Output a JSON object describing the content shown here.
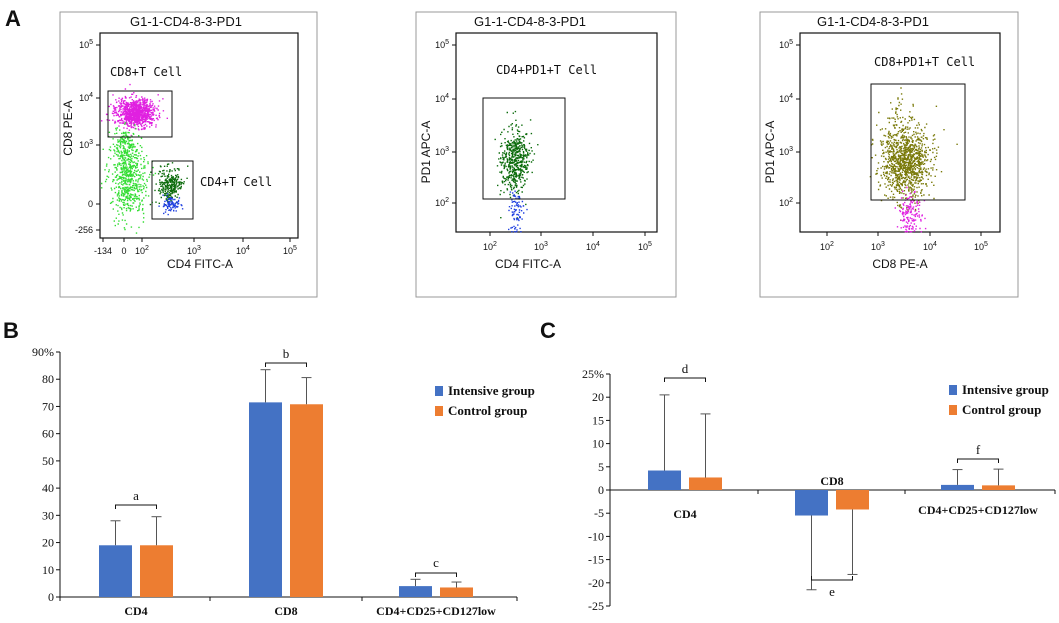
{
  "panels": {
    "A": "A",
    "B": "B",
    "C": "C"
  },
  "flow": {
    "plot1": {
      "title": "G1-1-CD4-8-3-PD1",
      "ylabel": "CD8 PE-A",
      "xlabel": "CD4 FITC-A",
      "gate1": "CD8+T Cell",
      "gate2": "CD4+T Cell",
      "yticks": [
        "10^5",
        "10^4",
        "10^3",
        "0",
        "-256"
      ],
      "xticks": [
        "-134",
        "0",
        "10^2",
        "10^3",
        "10^4",
        "10^5"
      ]
    },
    "plot2": {
      "title": "G1-1-CD4-8-3-PD1",
      "ylabel": "PD1 APC-A",
      "xlabel": "CD4 FITC-A",
      "gate": "CD4+PD1+T Cell",
      "yticks": [
        "10^5",
        "10^4",
        "10^3",
        "10^2"
      ],
      "xticks": [
        "10^2",
        "10^3",
        "10^4",
        "10^5"
      ]
    },
    "plot3": {
      "title": "G1-1-CD4-8-3-PD1",
      "ylabel": "PD1 APC-A",
      "xlabel": "CD8 PE-A",
      "gate": "CD8+PD1+T Cell",
      "yticks": [
        "10^5",
        "10^4",
        "10^3",
        "10^2"
      ],
      "xticks": [
        "10^2",
        "10^3",
        "10^4",
        "10^5"
      ]
    }
  },
  "colors": {
    "intensive": "#4472C4",
    "control": "#ED7D31",
    "magenta": "#E020E0",
    "green_light": "#33DD33",
    "green_dark": "#0B6B0B",
    "blue_dots": "#2040E0",
    "olive": "#7A7A0A"
  },
  "chart_data": [
    {
      "type": "bar",
      "panel": "B",
      "categories": [
        "CD4",
        "CD8",
        "CD4+CD25+CD127low"
      ],
      "series": [
        {
          "name": "Intensive group",
          "values": [
            19,
            71.5,
            4
          ],
          "errors": [
            9,
            12,
            2.5
          ]
        },
        {
          "name": "Control group",
          "values": [
            19,
            70.8,
            3.5
          ],
          "errors": [
            10.5,
            9.8,
            2
          ]
        }
      ],
      "ylim": [
        0,
        90
      ],
      "yticks": [
        "0",
        "10",
        "20",
        "30",
        "40",
        "50",
        "60",
        "70",
        "80",
        "90%"
      ],
      "significance": [
        "a",
        "b",
        "c"
      ],
      "legend": "right"
    },
    {
      "type": "bar",
      "panel": "C",
      "categories": [
        "CD4",
        "CD8",
        "CD4+CD25+CD127low"
      ],
      "series": [
        {
          "name": "Intensive group",
          "values": [
            4.2,
            -5.5,
            1.1
          ],
          "errors": [
            16.3,
            16,
            3.3
          ]
        },
        {
          "name": "Control group",
          "values": [
            2.7,
            -4.2,
            1.0
          ],
          "errors": [
            13.7,
            14,
            3.5
          ]
        }
      ],
      "ylim": [
        -25,
        25
      ],
      "yticks": [
        "-25",
        "-20",
        "-15",
        "-10",
        "-5",
        "0",
        "5",
        "10",
        "15",
        "20",
        "25%"
      ],
      "significance": [
        "d",
        "e",
        "f"
      ],
      "legend": "right"
    }
  ]
}
